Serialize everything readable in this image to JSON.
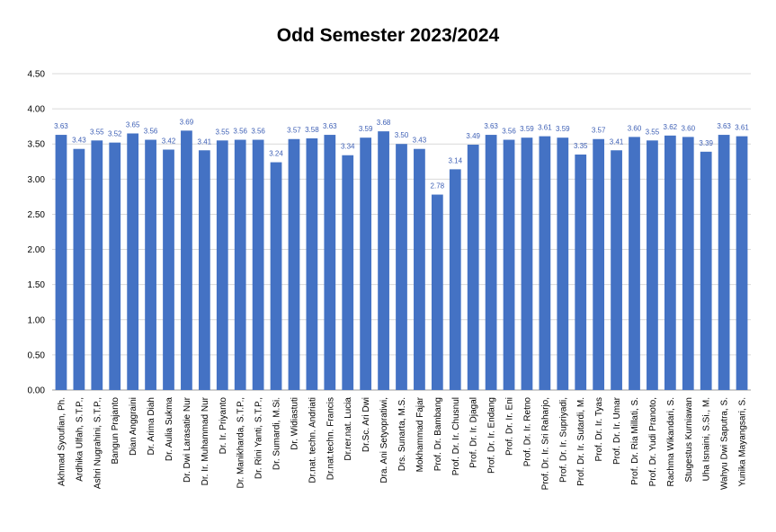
{
  "chart_data": {
    "type": "bar",
    "title": "Odd Semester 2023/2024",
    "xlabel": "",
    "ylabel": "",
    "ylim": [
      0,
      4.5
    ],
    "yticks": [
      "0.00",
      "0.50",
      "1.00",
      "1.50",
      "2.00",
      "2.50",
      "3.00",
      "3.50",
      "4.00",
      "4.50"
    ],
    "grid": true,
    "bar_color": "#4472c4",
    "label_color": "#3d5fb5",
    "categories": [
      "Akhmad Syoufian, Ph.",
      "Ardhika Ulfah, S.T.P.,",
      "Ashri Nugrahini, S.T.P.,",
      "Bangun Prajanto",
      "Dian Anggraini",
      "Dr. Arima Diah",
      "Dr. Aulia Sukma",
      "Dr. Dwi Larasatie Nur",
      "Dr. Ir. Muhammad Nur",
      "Dr. Ir. Priyanto",
      "Dr. Manikharda, S.T.P.,",
      "Dr. Rini Yanti, S.T.P.,",
      "Dr. Sumardi, M.Si.",
      "Dr. Widiastuti",
      "Dr.nat. techn. Andriati",
      "Dr.nat.techn. Francis",
      "Dr.rer.nat. Lucia",
      "Dr.Sc. Ari Dwi",
      "Dra. Ani Setyopratiwi,",
      "Drs. Sunarta, M.S.",
      "Mokhammad Fajar",
      "Prof. Dr. Bambang",
      "Prof. Dr. Ir. Chusnul",
      "Prof. Dr. Ir. Djagal",
      "Prof. Dr. Ir. Endang",
      "Prof. Dr. Ir. Eni",
      "Prof. Dr. Ir. Retno",
      "Prof. Dr. Ir. Sri Raharjo,",
      "Prof. Dr. Ir. Supriyadi,",
      "Prof. Dr. Ir. Sutardi, M.",
      "Prof. Dr. Ir. Tyas",
      "Prof. Dr. Ir. Umar",
      "Prof. Dr. Ria Millati, S.",
      "Prof. Dr. Yudi Pranoto,",
      "Rachma Wikandari, S.",
      "Stugestus Kurniawan",
      "Uha Isnaini, S.Si., M.",
      "Wahyu Dwi Saputra, S.",
      "Yunika Mayangsari, S."
    ],
    "values": [
      3.63,
      3.43,
      3.55,
      3.52,
      3.65,
      3.56,
      3.42,
      3.69,
      3.41,
      3.55,
      3.56,
      3.56,
      3.24,
      3.57,
      3.58,
      3.63,
      3.34,
      3.59,
      3.68,
      3.5,
      3.43,
      2.78,
      3.14,
      3.49,
      3.63,
      3.56,
      3.59,
      3.61,
      3.59,
      3.35,
      3.57,
      3.41,
      3.6,
      3.55,
      3.62,
      3.6,
      3.39,
      3.63,
      3.61
    ],
    "value_labels": [
      "3.63",
      "3.43",
      "3.55",
      "3.52",
      "3.65",
      "3.56",
      "3.42",
      "3.69",
      "3.41",
      "3.55",
      "3.56",
      "3.56",
      "3.24",
      "3.57",
      "3.58",
      "3.63",
      "3.34",
      "3.59",
      "3.68",
      "3.50",
      "3.43",
      "2.78",
      "3.14",
      "3.49",
      "3.63",
      "3.56",
      "3.59",
      "3.61",
      "3.59",
      "3.35",
      "3.57",
      "3.41",
      "3.60",
      "3.55",
      "3.62",
      "3.60",
      "3.39",
      "3.63",
      "3.61"
    ]
  }
}
